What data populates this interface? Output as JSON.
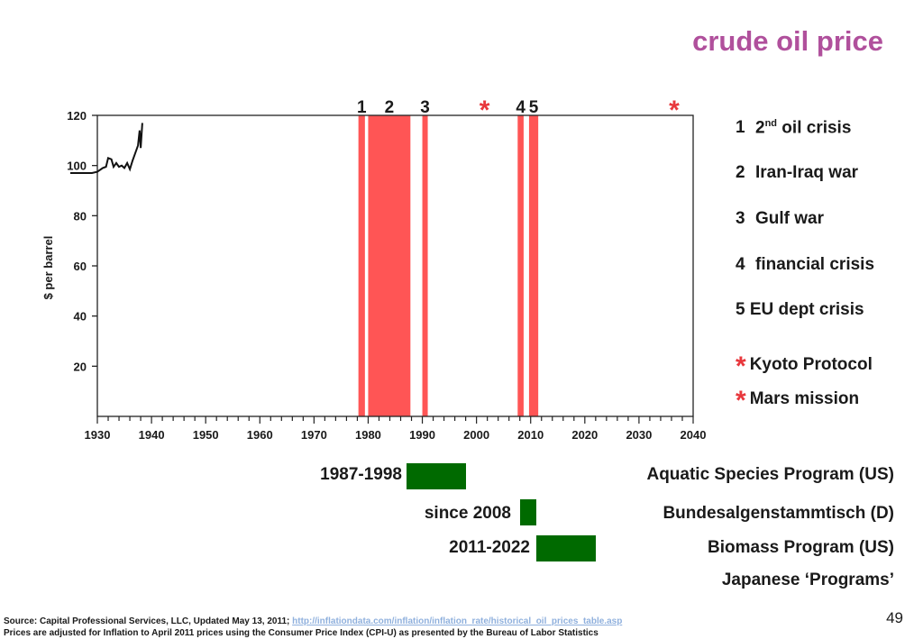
{
  "title": "crude oil price",
  "chart_data": {
    "type": "line",
    "ylabel": "$ per barrel",
    "xlim": [
      1930,
      2040
    ],
    "ylim": [
      0,
      120
    ],
    "xticks": [
      1930,
      1940,
      1950,
      1960,
      1970,
      1980,
      1990,
      2000,
      2010,
      2020,
      2030,
      2040
    ],
    "yticks": [
      20,
      40,
      60,
      80,
      100,
      120
    ],
    "series": [
      {
        "values": [
          [
            1925,
            97
          ],
          [
            1929,
            97
          ],
          [
            1930,
            97.5
          ],
          [
            1931,
            99
          ],
          [
            1931.6,
            99.5
          ],
          [
            1932,
            103
          ],
          [
            1932.6,
            102.5
          ],
          [
            1933,
            99.5
          ],
          [
            1933.5,
            101
          ],
          [
            1934,
            99.5
          ],
          [
            1934.5,
            100
          ],
          [
            1935,
            99
          ],
          [
            1935.5,
            101
          ],
          [
            1936,
            98.5
          ],
          [
            1936.5,
            102
          ],
          [
            1937,
            105
          ],
          [
            1937.5,
            108
          ],
          [
            1937.8,
            114
          ],
          [
            1938,
            107
          ],
          [
            1938.3,
            117
          ]
        ]
      }
    ],
    "event_bands": [
      {
        "label": "1",
        "start": 1978.2,
        "end": 1979.4
      },
      {
        "label": "2",
        "start": 1980.0,
        "end": 1987.8
      },
      {
        "label": "3",
        "start": 1990.0,
        "end": 1991.0
      },
      {
        "label": "4",
        "start": 2007.6,
        "end": 2008.7
      },
      {
        "label": "5",
        "start": 2009.7,
        "end": 2011.4
      }
    ],
    "event_markers": [
      {
        "label": "*",
        "at": 2001.5
      },
      {
        "label": "*",
        "at": 2036.5
      }
    ]
  },
  "colors": {
    "title": "#b0509c",
    "band": "#ff5555",
    "marker": "#e8373c",
    "program_bar": "#006a00",
    "link": "#8fb0dd"
  },
  "legend": [
    {
      "num": "1",
      "text_pre": "2",
      "sup": "nd",
      "text_post": " oil crisis"
    },
    {
      "num": "2",
      "text": "Iran-Iraq war"
    },
    {
      "num": "3",
      "text": "Gulf war"
    },
    {
      "num": "4",
      "text": "financial crisis"
    },
    {
      "num": "5",
      "text": "EU dept crisis"
    },
    {
      "num": "*",
      "text": "Kyoto Protocol"
    },
    {
      "num": "*",
      "text": "Mars mission"
    }
  ],
  "programs": [
    {
      "period": "1987-1998",
      "name": "Aquatic Species Program (US)",
      "start": 1987,
      "end": 1998
    },
    {
      "period": "since 2008",
      "name": "Bundesalgenstammtisch (D)",
      "start": 2008,
      "end": 2011
    },
    {
      "period": "2011-2022",
      "name": "Biomass Program (US)",
      "start": 2011,
      "end": 2022
    },
    {
      "period": "",
      "name": "Japanese ‘Programs’"
    }
  ],
  "source": {
    "prefix": "Source: Capital Professional Services, LLC, Updated May 13, 2011; ",
    "url": "http://inflationdata.com/inflation/inflation_rate/historical_oil_prices_table.asp",
    "line2": "Prices are adjusted for Inflation to April 2011 prices using the Consumer Price Index (CPI-U) as presented by the Bureau of Labor Statistics"
  },
  "page_number": "49"
}
